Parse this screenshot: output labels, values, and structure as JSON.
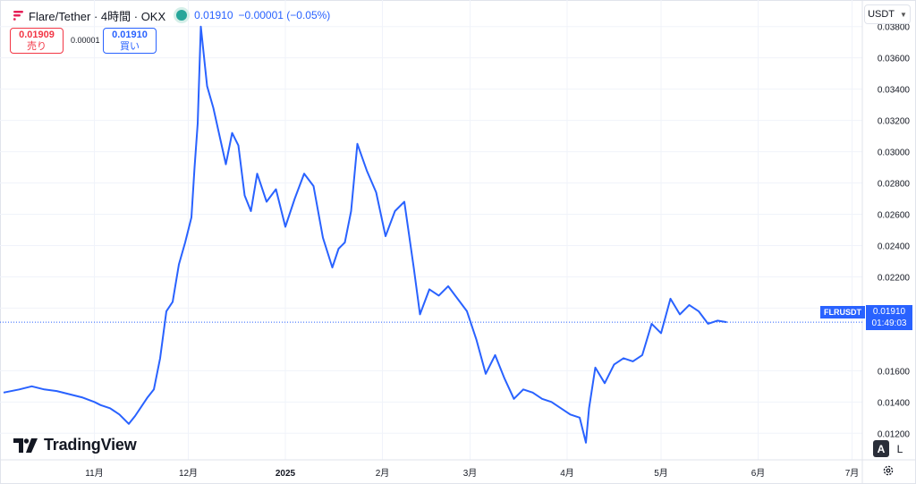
{
  "header": {
    "title": "Flare/Tether · 4時間 · OKX",
    "price": "0.01910",
    "change": "−0.00001 (−0.05%)"
  },
  "trade": {
    "sell_price": "0.01909",
    "sell_label": "売り",
    "spread": "0.00001",
    "buy_price": "0.01910",
    "buy_label": "買い"
  },
  "currency": "USDT",
  "logo_text": "TradingView",
  "last_price_label": {
    "symbol": "FLRUSDT",
    "price": "0.01910",
    "countdown": "01:49:03"
  },
  "axis_buttons": {
    "auto": "A",
    "log": "L"
  },
  "colors": {
    "line": "#2962ff",
    "up": "#26a69a",
    "down": "#f23645",
    "grid": "#f0f3fa",
    "axis_text": "#131722"
  },
  "chart_data": {
    "type": "line",
    "symbol": "FLRUSDT",
    "x_tick_labels": [
      "11月",
      "12月",
      "2025",
      "2月",
      "3月",
      "4月",
      "5月",
      "6月",
      "7月"
    ],
    "y_tick_labels": [
      "0.03800",
      "0.03600",
      "0.03400",
      "0.03200",
      "0.03000",
      "0.02800",
      "0.02600",
      "0.02400",
      "0.02200",
      "0.02000",
      "0.01600",
      "0.01400",
      "0.01200"
    ],
    "ylim": [
      0.0103,
      0.0397
    ],
    "grid": true,
    "last_value": 0.0191,
    "series": [
      {
        "x": [
          "2024-10-03",
          "2024-10-08",
          "2024-10-12",
          "2024-10-16",
          "2024-10-20",
          "2024-10-24",
          "2024-10-28",
          "2024-11-01",
          "2024-11-03",
          "2024-11-06",
          "2024-11-09",
          "2024-11-12",
          "2024-11-14",
          "2024-11-16",
          "2024-11-18",
          "2024-11-20",
          "2024-11-22",
          "2024-11-24",
          "2024-11-26",
          "2024-11-28",
          "2024-11-30",
          "2024-12-02",
          "2024-12-03",
          "2024-12-04",
          "2024-12-05",
          "2024-12-07",
          "2024-12-09",
          "2024-12-11",
          "2024-12-13",
          "2024-12-15",
          "2024-12-17",
          "2024-12-19",
          "2024-12-21",
          "2024-12-23",
          "2024-12-26",
          "2024-12-29",
          "2025-01-01",
          "2025-01-04",
          "2025-01-07",
          "2025-01-10",
          "2025-01-13",
          "2025-01-16",
          "2025-01-18",
          "2025-01-20",
          "2025-01-22",
          "2025-01-24",
          "2025-01-27",
          "2025-01-30",
          "2025-02-02",
          "2025-02-05",
          "2025-02-08",
          "2025-02-11",
          "2025-02-13",
          "2025-02-16",
          "2025-02-19",
          "2025-02-22",
          "2025-02-25",
          "2025-02-28",
          "2025-03-03",
          "2025-03-06",
          "2025-03-09",
          "2025-03-12",
          "2025-03-15",
          "2025-03-18",
          "2025-03-21",
          "2025-03-24",
          "2025-03-27",
          "2025-03-30",
          "2025-04-02",
          "2025-04-05",
          "2025-04-07",
          "2025-04-08",
          "2025-04-10",
          "2025-04-13",
          "2025-04-16",
          "2025-04-19",
          "2025-04-22",
          "2025-04-25",
          "2025-04-28",
          "2025-05-01",
          "2025-05-04",
          "2025-05-07",
          "2025-05-10",
          "2025-05-13",
          "2025-05-16",
          "2025-05-19",
          "2025-05-22"
        ],
        "values": [
          0.0146,
          0.0148,
          0.015,
          0.0148,
          0.0147,
          0.0145,
          0.0143,
          0.014,
          0.0138,
          0.0136,
          0.0132,
          0.0126,
          0.0131,
          0.0137,
          0.0143,
          0.0148,
          0.0168,
          0.0198,
          0.0204,
          0.0228,
          0.0242,
          0.0258,
          0.029,
          0.0318,
          0.038,
          0.0342,
          0.0328,
          0.031,
          0.0292,
          0.0312,
          0.0304,
          0.0272,
          0.0262,
          0.0286,
          0.0268,
          0.0276,
          0.0252,
          0.027,
          0.0286,
          0.0278,
          0.0245,
          0.0226,
          0.0238,
          0.0242,
          0.0262,
          0.0305,
          0.0288,
          0.0274,
          0.0246,
          0.0262,
          0.0268,
          0.0226,
          0.0196,
          0.0212,
          0.0208,
          0.0214,
          0.0206,
          0.0198,
          0.018,
          0.0158,
          0.017,
          0.0155,
          0.0142,
          0.0148,
          0.0146,
          0.0142,
          0.014,
          0.0136,
          0.0132,
          0.013,
          0.0114,
          0.0136,
          0.0162,
          0.0152,
          0.0164,
          0.0168,
          0.0166,
          0.017,
          0.019,
          0.0184,
          0.0206,
          0.0196,
          0.0202,
          0.0198,
          0.019,
          0.0192,
          0.0191
        ]
      }
    ]
  }
}
